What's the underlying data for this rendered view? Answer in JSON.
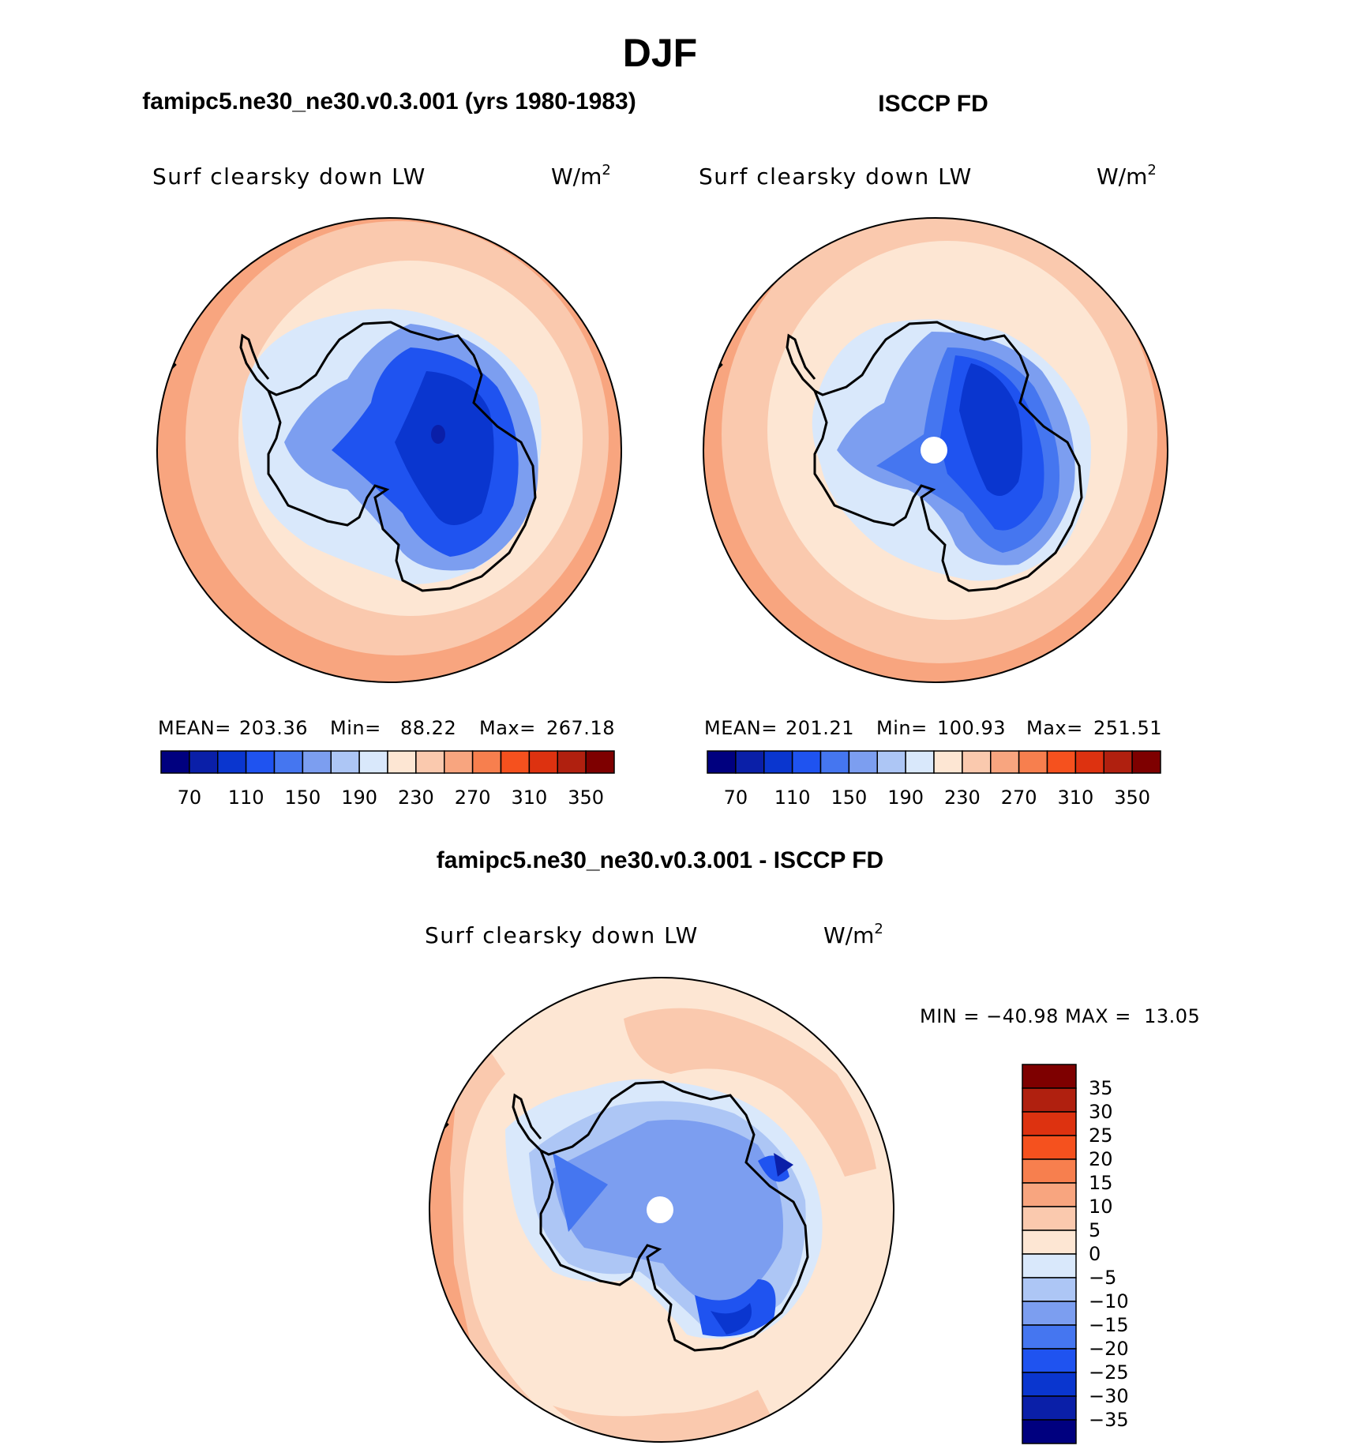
{
  "title": "DJF",
  "palette": {
    "abs": [
      "#00007f",
      "#0a1fa8",
      "#0a36cf",
      "#1f53f0",
      "#4576f0",
      "#7c9ef0",
      "#adc6f5",
      "#d9e8fb",
      "#fde6d3",
      "#fac9ae",
      "#f8a57f",
      "#f77f4e",
      "#f5511e",
      "#dd3210",
      "#b0200f",
      "#7e0000"
    ],
    "diff": [
      "#00007f",
      "#0a1fa8",
      "#0a36cf",
      "#1f53f0",
      "#4576f0",
      "#7c9ef0",
      "#adc6f5",
      "#d9e8fb",
      "#fde6d3",
      "#fac9ae",
      "#f8a57f",
      "#f77f4e",
      "#f5511e",
      "#dd3210",
      "#b0200f",
      "#7e0000"
    ]
  },
  "panels": [
    {
      "heading": "famipc5.ne30_ne30.v0.3.001 (yrs 1980-1983)",
      "variable": "Surf clearsky down LW",
      "units_base": "W/m",
      "units_exp": "2",
      "stats": {
        "mean_label": "MEAN=",
        "mean": "203.36",
        "min_label": "Min=",
        "min": "88.22",
        "max_label": "Max=",
        "max": "267.18"
      },
      "colorbar_ticks": [
        "70",
        "110",
        "150",
        "190",
        "230",
        "270",
        "310",
        "350"
      ],
      "pole_hole": false
    },
    {
      "heading": "ISCCP FD",
      "variable": "Surf clearsky down LW",
      "units_base": "W/m",
      "units_exp": "2",
      "stats": {
        "mean_label": "MEAN=",
        "mean": "201.21",
        "min_label": "Min=",
        "min": "100.93",
        "max_label": "Max=",
        "max": "251.51"
      },
      "colorbar_ticks": [
        "70",
        "110",
        "150",
        "190",
        "230",
        "270",
        "310",
        "350"
      ],
      "pole_hole": true
    }
  ],
  "difference": {
    "heading": "famipc5.ne30_ne30.v0.3.001 - ISCCP FD",
    "variable": "Surf clearsky down LW",
    "units_base": "W/m",
    "units_exp": "2",
    "stats_text": "MIN = −40.98 MAX =  13.05",
    "colorbar_ticks": [
      "35",
      "30",
      "25",
      "20",
      "15",
      "10",
      "5",
      "0",
      "−5",
      "−10",
      "−15",
      "−20",
      "−25",
      "−30",
      "−35"
    ]
  }
}
